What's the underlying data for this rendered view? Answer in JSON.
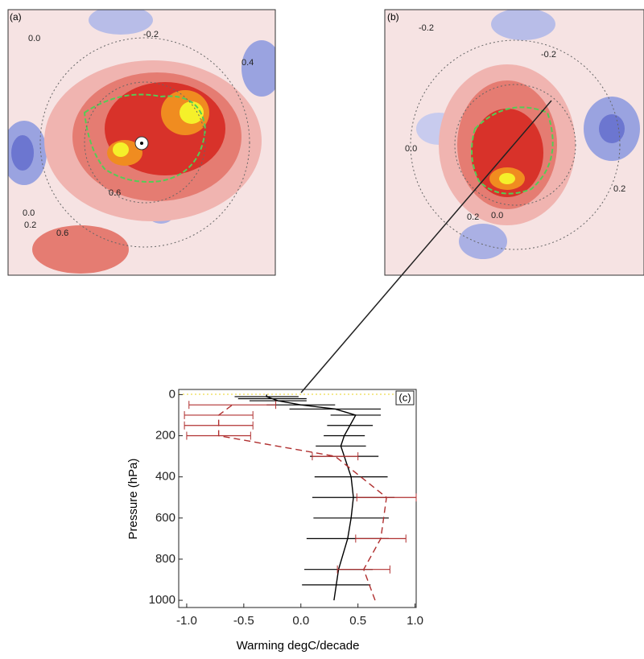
{
  "maps": [
    {
      "label": "(a)",
      "contour_labels": [
        "-0.2",
        "0.0",
        "0.4",
        "0.6",
        "0.2",
        "0.6",
        "0.0"
      ]
    },
    {
      "label": "(b)",
      "contour_labels": [
        "-0.2",
        "-0.2",
        "0.0",
        "0.2",
        "0.2",
        "0.0"
      ]
    }
  ],
  "chart_data": {
    "type": "profile",
    "label": "(c)",
    "xlabel": "Warming degC/decade",
    "ylabel": "Pressure (hPa)",
    "xlim": [
      -1.07,
      1.01
    ],
    "xticks": [
      {
        "value": -1,
        "label": "-1.0"
      },
      {
        "value": -0.5,
        "label": "-0.5"
      },
      {
        "value": 0,
        "label": "0.0"
      },
      {
        "value": 0.5,
        "label": "0.5"
      },
      {
        "value": 1,
        "label": "1.0"
      }
    ],
    "ylim": [
      1035,
      -25
    ],
    "yticks": [
      0,
      200,
      400,
      600,
      800,
      1000
    ],
    "series": [
      {
        "color": "#000000",
        "dash": false,
        "levels": [
          1000,
          925,
          850,
          700,
          600,
          500,
          400,
          300,
          250,
          200,
          150,
          100,
          70,
          50,
          30,
          20,
          10,
          0
        ],
        "values": [
          0.29,
          0.31,
          0.33,
          0.41,
          0.44,
          0.46,
          0.44,
          0.38,
          0.35,
          0.38,
          0.43,
          0.48,
          0.3,
          0.0,
          -0.2,
          -0.25,
          -0.3,
          -0.3
        ],
        "errors": [
          null,
          0.3,
          0.3,
          0.36,
          0.33,
          0.36,
          0.32,
          0.3,
          0.22,
          0.18,
          0.2,
          0.22,
          0.4,
          0.3,
          0.25,
          0.3,
          0.28,
          null
        ]
      },
      {
        "color": "#b03030",
        "dash": true,
        "levels": [
          1000,
          850,
          700,
          500,
          300,
          200,
          150,
          100,
          50
        ],
        "values": [
          0.65,
          0.55,
          0.7,
          0.75,
          0.3,
          -0.72,
          -0.72,
          -0.72,
          -0.6
        ],
        "errors": [
          null,
          0.23,
          0.22,
          0.26,
          0.2,
          0.28,
          0.3,
          0.3,
          0.38
        ]
      }
    ]
  }
}
